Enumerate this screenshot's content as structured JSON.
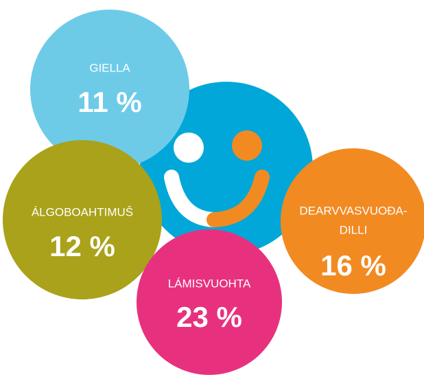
{
  "items": [
    {
      "label": [
        "GIELLA"
      ],
      "value": "11 %",
      "color": "#6dcbe8"
    },
    {
      "label": [
        "ÁLGOBOAHTIMUŠ"
      ],
      "value": "12 %",
      "color": "#a9a21a"
    },
    {
      "label": [
        "LÁMISVUOHTA"
      ],
      "value": "23 %",
      "color": "#e8317e"
    },
    {
      "label": [
        "DEARVVASVUOĐA-",
        "DILLI"
      ],
      "value": "16 %",
      "color": "#f28a22"
    }
  ]
}
